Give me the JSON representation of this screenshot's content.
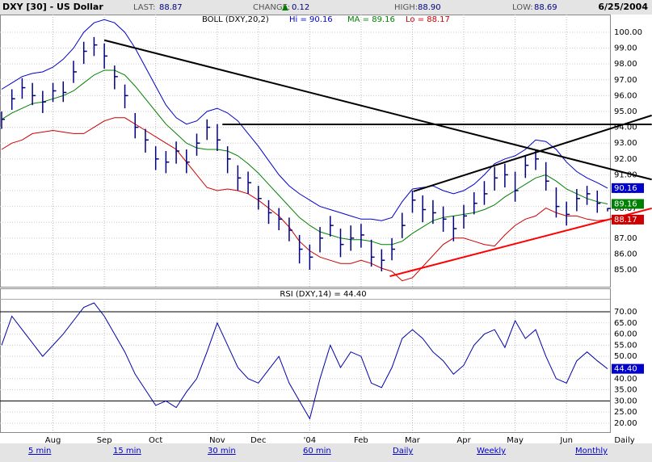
{
  "header": {
    "title": "DXY [30] - US Dollar",
    "fields": [
      {
        "label": "LAST:",
        "value": "88.87"
      },
      {
        "label": "CHANGE:",
        "value": "0.12"
      },
      {
        "label": "HIGH:",
        "value": "88.90"
      },
      {
        "label": "LOW:",
        "value": "88.69"
      }
    ],
    "date": "6/25/2004"
  },
  "chart_data": [
    {
      "type": "hlc",
      "title": "BOLL (DXY,20,2)",
      "color": "#000080",
      "high": [
        95.0,
        96.4,
        97.1,
        96.8,
        96.3,
        96.8,
        96.9,
        98.2,
        99.4,
        99.7,
        99.3,
        97.9,
        96.7,
        94.9,
        93.9,
        92.8,
        92.5,
        93.1,
        92.6,
        93.6,
        94.5,
        94.2,
        92.8,
        91.6,
        91.2,
        90.3,
        89.4,
        88.9,
        88.3,
        87.2,
        86.6,
        87.7,
        88.4,
        87.6,
        87.8,
        87.9,
        86.9,
        86.3,
        87.0,
        88.6,
        90.0,
        89.7,
        89.4,
        89.0,
        88.4,
        89.1,
        89.9,
        90.6,
        91.5,
        91.7,
        91.2,
        92.2,
        92.6,
        91.8,
        90.2,
        89.3,
        90.1,
        90.3,
        90.0,
        88.9
      ],
      "low": [
        93.9,
        95.1,
        95.8,
        95.4,
        94.9,
        95.6,
        95.6,
        96.8,
        98.0,
        98.5,
        97.7,
        96.4,
        95.2,
        93.3,
        92.4,
        91.3,
        91.1,
        91.7,
        91.1,
        92.2,
        93.2,
        92.5,
        91.1,
        90.0,
        89.8,
        88.8,
        87.9,
        87.5,
        86.8,
        85.4,
        85.0,
        86.1,
        87.1,
        85.8,
        86.2,
        86.4,
        85.2,
        84.9,
        85.6,
        87.0,
        88.6,
        88.0,
        87.9,
        87.4,
        86.8,
        87.6,
        88.5,
        89.1,
        90.0,
        90.2,
        89.3,
        90.8,
        91.3,
        90.0,
        88.3,
        87.8,
        88.7,
        89.1,
        88.6,
        88.69
      ],
      "close": [
        94.5,
        95.8,
        96.5,
        96.0,
        95.6,
        96.3,
        96.2,
        97.5,
        98.8,
        99.2,
        98.5,
        97.2,
        96.0,
        94.0,
        93.2,
        92.0,
        91.8,
        92.5,
        91.8,
        93.0,
        94.0,
        93.2,
        92.0,
        90.8,
        90.5,
        89.5,
        88.6,
        88.2,
        87.5,
        86.3,
        85.8,
        87.0,
        87.8,
        86.6,
        87.0,
        87.2,
        85.8,
        85.6,
        86.3,
        87.8,
        89.4,
        88.8,
        88.6,
        88.2,
        87.6,
        88.4,
        89.2,
        89.8,
        90.8,
        91.0,
        90.0,
        91.6,
        92.0,
        90.6,
        89.0,
        88.5,
        89.5,
        89.8,
        89.2,
        88.87
      ],
      "series": [
        {
          "name": "Hi = 90.16",
          "color": "#0000cc",
          "values": [
            96.4,
            96.8,
            97.2,
            97.4,
            97.5,
            97.8,
            98.3,
            99.0,
            100.0,
            100.6,
            100.8,
            100.6,
            100.0,
            99.0,
            97.8,
            96.6,
            95.4,
            94.6,
            94.2,
            94.4,
            95.0,
            95.2,
            94.9,
            94.4,
            93.6,
            92.8,
            91.9,
            91.0,
            90.3,
            89.8,
            89.4,
            89.0,
            88.8,
            88.6,
            88.4,
            88.2,
            88.2,
            88.1,
            88.3,
            89.3,
            90.1,
            90.2,
            90.3,
            90.0,
            89.8,
            90.0,
            90.4,
            91.0,
            91.7,
            92.0,
            92.2,
            92.6,
            93.2,
            93.1,
            92.6,
            91.8,
            91.2,
            90.8,
            90.5,
            90.16
          ]
        },
        {
          "name": "MA = 89.16",
          "color": "#008000",
          "values": [
            94.5,
            94.9,
            95.2,
            95.5,
            95.6,
            95.8,
            96.0,
            96.3,
            96.8,
            97.3,
            97.6,
            97.6,
            97.3,
            96.6,
            95.8,
            95.0,
            94.2,
            93.6,
            93.0,
            92.7,
            92.6,
            92.6,
            92.5,
            92.2,
            91.7,
            91.1,
            90.4,
            89.7,
            89.0,
            88.3,
            87.8,
            87.4,
            87.2,
            87.0,
            86.9,
            86.9,
            86.8,
            86.6,
            86.6,
            86.8,
            87.3,
            87.7,
            88.1,
            88.3,
            88.4,
            88.5,
            88.6,
            88.8,
            89.1,
            89.6,
            90.0,
            90.4,
            90.8,
            91.0,
            90.6,
            90.1,
            89.8,
            89.5,
            89.3,
            89.16
          ]
        },
        {
          "name": "Lo = 88.17",
          "color": "#cc0000",
          "values": [
            92.6,
            93.0,
            93.2,
            93.6,
            93.7,
            93.8,
            93.7,
            93.6,
            93.6,
            94.0,
            94.4,
            94.6,
            94.6,
            94.2,
            93.8,
            93.4,
            93.0,
            92.6,
            91.8,
            91.0,
            90.2,
            90.0,
            90.1,
            90.0,
            89.8,
            89.4,
            88.9,
            88.4,
            87.7,
            86.8,
            86.2,
            85.8,
            85.6,
            85.4,
            85.4,
            85.6,
            85.4,
            85.1,
            84.9,
            84.3,
            84.5,
            85.2,
            85.9,
            86.6,
            87.0,
            87.0,
            86.8,
            86.6,
            86.5,
            87.2,
            87.8,
            88.2,
            88.4,
            88.9,
            88.6,
            88.4,
            88.4,
            88.2,
            88.1,
            88.17
          ]
        }
      ],
      "trendlines": [
        {
          "color": "#000000",
          "points": [
            [
              10,
              99.5
            ],
            [
              63.3,
              90.7
            ]
          ]
        },
        {
          "color": "#000000",
          "points": [
            [
              21.5,
              94.18
            ],
            [
              63.3,
              94.18
            ]
          ]
        },
        {
          "color": "#000000",
          "points": [
            [
              40.1,
              89.95
            ],
            [
              63.3,
              94.75
            ]
          ]
        },
        {
          "color": "#ff0000",
          "points": [
            [
              37.8,
              84.59
            ],
            [
              63.3,
              88.88
            ]
          ]
        }
      ],
      "ylim": [
        83.93,
        101.12
      ],
      "yticks": [
        {
          "value": 85,
          "label": "85.00"
        },
        {
          "value": 86,
          "label": "86.00"
        },
        {
          "value": 87,
          "label": "87.00"
        },
        {
          "value": 88,
          "label": "88.00"
        },
        {
          "value": 89,
          "label": "89.00"
        },
        {
          "value": 90,
          "label": "90.00"
        },
        {
          "value": 91,
          "label": "91.00"
        },
        {
          "value": 92,
          "label": "92.00"
        },
        {
          "value": 93,
          "label": "93.00"
        },
        {
          "value": 94,
          "label": "94.00"
        },
        {
          "value": 95,
          "label": "95.00"
        },
        {
          "value": 96,
          "label": "96.00"
        },
        {
          "value": 97,
          "label": "97.00"
        },
        {
          "value": 98,
          "label": "98.00"
        },
        {
          "value": 99,
          "label": "99.00"
        },
        {
          "value": 100,
          "label": "100.00"
        }
      ],
      "grid": true
    },
    {
      "type": "line",
      "title": "RSI (DXY,14) = 44.40",
      "color": "#0000aa",
      "categories": [
        null,
        null,
        null,
        null,
        null,
        "Aug",
        null,
        null,
        null,
        null,
        "Sep",
        null,
        null,
        null,
        null,
        "Oct",
        null,
        null,
        null,
        null,
        null,
        "Nov",
        null,
        null,
        null,
        "Dec",
        null,
        null,
        null,
        null,
        "'04",
        null,
        null,
        null,
        null,
        "Feb",
        null,
        null,
        null,
        null,
        "Mar",
        null,
        null,
        null,
        null,
        "Apr",
        null,
        null,
        null,
        null,
        "May",
        null,
        null,
        null,
        null,
        "Jun",
        null,
        null,
        null,
        null
      ],
      "values": [
        55,
        68,
        62,
        56,
        50,
        55,
        60,
        66,
        72,
        74,
        68,
        60,
        52,
        42,
        35,
        28,
        30,
        27,
        34,
        40,
        52,
        65,
        55,
        45,
        40,
        38,
        44,
        50,
        38,
        30,
        22,
        40,
        55,
        45,
        52,
        50,
        38,
        36,
        45,
        58,
        62,
        58,
        52,
        48,
        42,
        46,
        55,
        60,
        62,
        54,
        66,
        58,
        62,
        50,
        40,
        38,
        48,
        52,
        48,
        44.4
      ],
      "last_label": "44.40",
      "levels": [
        70,
        30
      ],
      "x_period": "Daily",
      "ylim": [
        16.0,
        75.8
      ],
      "yticks": [
        {
          "value": 20,
          "label": "20.00"
        },
        {
          "value": 25,
          "label": "25.00"
        },
        {
          "value": 30,
          "label": "30.00"
        },
        {
          "value": 35,
          "label": "35.00"
        },
        {
          "value": 40,
          "label": "40.00"
        },
        {
          "value": 45,
          "label": "45.00"
        },
        {
          "value": 50,
          "label": "50.00"
        },
        {
          "value": 55,
          "label": "55.00"
        },
        {
          "value": 60,
          "label": "60.00"
        },
        {
          "value": 65,
          "label": "65.00"
        },
        {
          "value": 70,
          "label": "70.00"
        }
      ],
      "grid": true
    }
  ],
  "links": [
    "5 min",
    "15 min",
    "30 min",
    "60 min",
    "Daily",
    "Weekly",
    "Monthly"
  ]
}
